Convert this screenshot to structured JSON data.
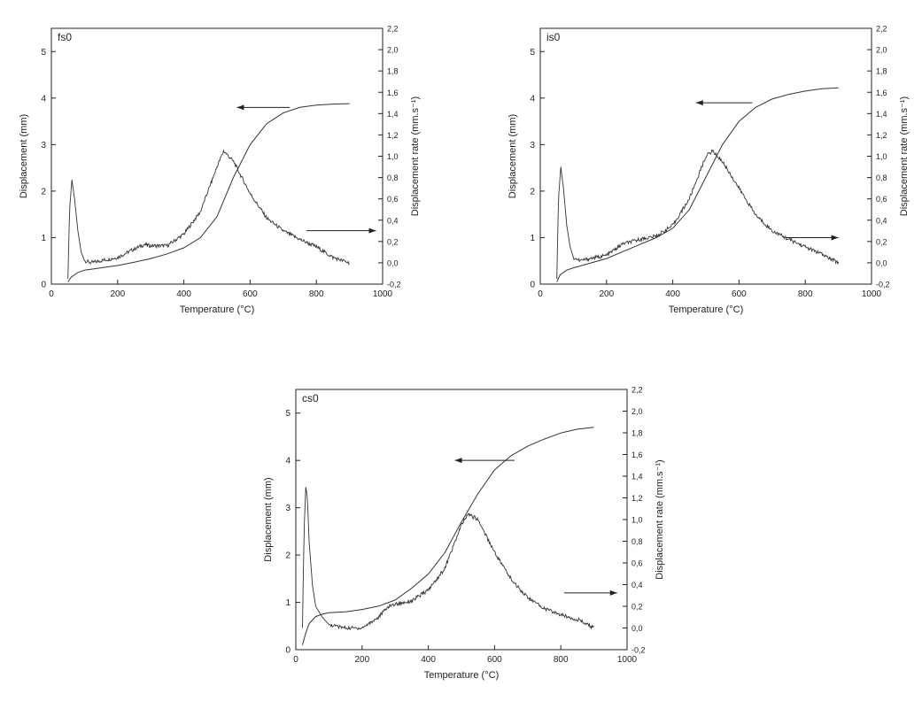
{
  "chart_data": [
    {
      "type": "line",
      "panel_label": "fs0",
      "xlabel": "Temperature (°C)",
      "ylabel": "Displacement (mm)",
      "y2label": "Displacement rate (mm.s⁻¹)",
      "xlim": [
        0,
        1000
      ],
      "ylim": [
        0,
        5.5
      ],
      "y2lim": [
        -0.2,
        2.2
      ],
      "xticks": [
        "0",
        "200",
        "400",
        "600",
        "800",
        "1000"
      ],
      "yticks": [
        "0",
        "1",
        "2",
        "3",
        "4",
        "5"
      ],
      "y2ticks": [
        "-0,2",
        "0,0",
        "0,2",
        "0,4",
        "0,6",
        "0,8",
        "1,0",
        "1,2",
        "1,4",
        "1,6",
        "1,8",
        "2,0",
        "2,2"
      ],
      "grid": false,
      "series": [
        {
          "axis": "left",
          "x": [
            50,
            60,
            80,
            100,
            150,
            200,
            250,
            300,
            350,
            400,
            450,
            500,
            550,
            600,
            650,
            700,
            750,
            800,
            850,
            900
          ],
          "y": [
            0.05,
            0.15,
            0.25,
            0.3,
            0.35,
            0.4,
            0.47,
            0.55,
            0.65,
            0.78,
            1.0,
            1.45,
            2.3,
            3.0,
            3.45,
            3.68,
            3.8,
            3.85,
            3.87,
            3.88
          ]
        },
        {
          "axis": "right",
          "x": [
            50,
            55,
            62,
            70,
            80,
            90,
            100,
            120,
            150,
            200,
            250,
            280,
            300,
            350,
            400,
            450,
            500,
            520,
            550,
            600,
            650,
            700,
            750,
            800,
            850,
            900
          ],
          "y": [
            -0.15,
            0.5,
            0.78,
            0.6,
            0.3,
            0.1,
            0.02,
            0.0,
            0.02,
            0.05,
            0.13,
            0.17,
            0.16,
            0.16,
            0.27,
            0.48,
            0.9,
            1.05,
            0.95,
            0.65,
            0.42,
            0.3,
            0.22,
            0.15,
            0.05,
            0.0
          ]
        }
      ],
      "annotations": [
        {
          "type": "arrow",
          "direction": "left",
          "points_to": "left-axis",
          "y_axis": "left",
          "y": 3.8,
          "x_from": 720,
          "x_to": 560
        },
        {
          "type": "arrow",
          "direction": "right",
          "points_to": "right-axis",
          "y_axis": "left",
          "y": 1.15,
          "x_from": 770,
          "x_to": 980
        }
      ]
    },
    {
      "type": "line",
      "panel_label": "is0",
      "xlabel": "Temperature (°C)",
      "ylabel": "Displacement (mm)",
      "y2label": "Displacement rate (mm.s⁻¹)",
      "xlim": [
        0,
        1000
      ],
      "ylim": [
        0,
        5.5
      ],
      "y2lim": [
        -0.2,
        2.2
      ],
      "xticks": [
        "0",
        "200",
        "400",
        "600",
        "800",
        "1000"
      ],
      "yticks": [
        "0",
        "1",
        "2",
        "3",
        "4",
        "5"
      ],
      "y2ticks": [
        "-0,2",
        "0,0",
        "0,2",
        "0,4",
        "0,6",
        "0,8",
        "1,0",
        "1,2",
        "1,4",
        "1,6",
        "1,8",
        "2,0",
        "2,2"
      ],
      "grid": false,
      "series": [
        {
          "axis": "left",
          "x": [
            50,
            60,
            80,
            100,
            150,
            200,
            250,
            300,
            350,
            400,
            450,
            500,
            550,
            600,
            650,
            700,
            750,
            800,
            850,
            900
          ],
          "y": [
            0.05,
            0.2,
            0.3,
            0.35,
            0.45,
            0.55,
            0.7,
            0.85,
            1.0,
            1.2,
            1.6,
            2.3,
            3.0,
            3.5,
            3.8,
            3.98,
            4.08,
            4.15,
            4.2,
            4.22
          ]
        },
        {
          "axis": "right",
          "x": [
            50,
            55,
            62,
            70,
            80,
            90,
            100,
            120,
            150,
            200,
            250,
            280,
            300,
            350,
            400,
            450,
            500,
            520,
            550,
            600,
            650,
            700,
            750,
            800,
            850,
            900
          ],
          "y": [
            -0.15,
            0.6,
            0.9,
            0.7,
            0.35,
            0.15,
            0.05,
            0.02,
            0.04,
            0.07,
            0.18,
            0.2,
            0.22,
            0.25,
            0.35,
            0.6,
            1.0,
            1.05,
            0.95,
            0.7,
            0.45,
            0.3,
            0.22,
            0.15,
            0.08,
            0.0
          ]
        }
      ],
      "annotations": [
        {
          "type": "arrow",
          "direction": "left",
          "points_to": "left-axis",
          "y_axis": "left",
          "y": 3.9,
          "x_from": 640,
          "x_to": 470
        },
        {
          "type": "arrow",
          "direction": "right",
          "points_to": "right-axis",
          "y_axis": "left",
          "y": 1.0,
          "x_from": 740,
          "x_to": 900
        }
      ]
    },
    {
      "type": "line",
      "panel_label": "cs0",
      "xlabel": "Temperature (°C)",
      "ylabel": "Displacement (mm)",
      "y2label": "Displacement rate (mm.s⁻¹)",
      "xlim": [
        0,
        1000
      ],
      "ylim": [
        0,
        5.5
      ],
      "y2lim": [
        -0.2,
        2.2
      ],
      "xticks": [
        "0",
        "200",
        "400",
        "600",
        "800",
        "1000"
      ],
      "yticks": [
        "0",
        "1",
        "2",
        "3",
        "4",
        "5"
      ],
      "y2ticks": [
        "-0,2",
        "0,0",
        "0,2",
        "0,4",
        "0,6",
        "0,8",
        "1,0",
        "1,2",
        "1,4",
        "1,6",
        "1,8",
        "2,0",
        "2,2"
      ],
      "grid": false,
      "series": [
        {
          "axis": "left",
          "x": [
            20,
            30,
            40,
            60,
            80,
            100,
            150,
            200,
            250,
            300,
            350,
            400,
            450,
            500,
            550,
            600,
            650,
            700,
            750,
            800,
            850,
            900
          ],
          "y": [
            0.1,
            0.35,
            0.55,
            0.7,
            0.75,
            0.78,
            0.8,
            0.85,
            0.92,
            1.05,
            1.3,
            1.6,
            2.05,
            2.7,
            3.3,
            3.8,
            4.1,
            4.3,
            4.45,
            4.58,
            4.66,
            4.7
          ]
        },
        {
          "axis": "right",
          "x": [
            20,
            25,
            30,
            35,
            40,
            50,
            60,
            80,
            100,
            150,
            200,
            250,
            280,
            300,
            350,
            400,
            450,
            500,
            520,
            550,
            600,
            650,
            700,
            750,
            800,
            850,
            900
          ],
          "y": [
            0.0,
            0.9,
            1.3,
            1.2,
            0.8,
            0.4,
            0.2,
            0.1,
            0.03,
            0.0,
            0.0,
            0.1,
            0.2,
            0.22,
            0.25,
            0.35,
            0.55,
            0.95,
            1.05,
            1.0,
            0.7,
            0.45,
            0.28,
            0.18,
            0.12,
            0.08,
            0.0
          ]
        }
      ],
      "annotations": [
        {
          "type": "arrow",
          "direction": "left",
          "points_to": "left-axis",
          "y_axis": "left",
          "y": 4.0,
          "x_from": 660,
          "x_to": 480
        },
        {
          "type": "arrow",
          "direction": "right",
          "points_to": "right-axis",
          "y_axis": "left",
          "y": 1.2,
          "x_from": 810,
          "x_to": 970
        }
      ]
    }
  ]
}
